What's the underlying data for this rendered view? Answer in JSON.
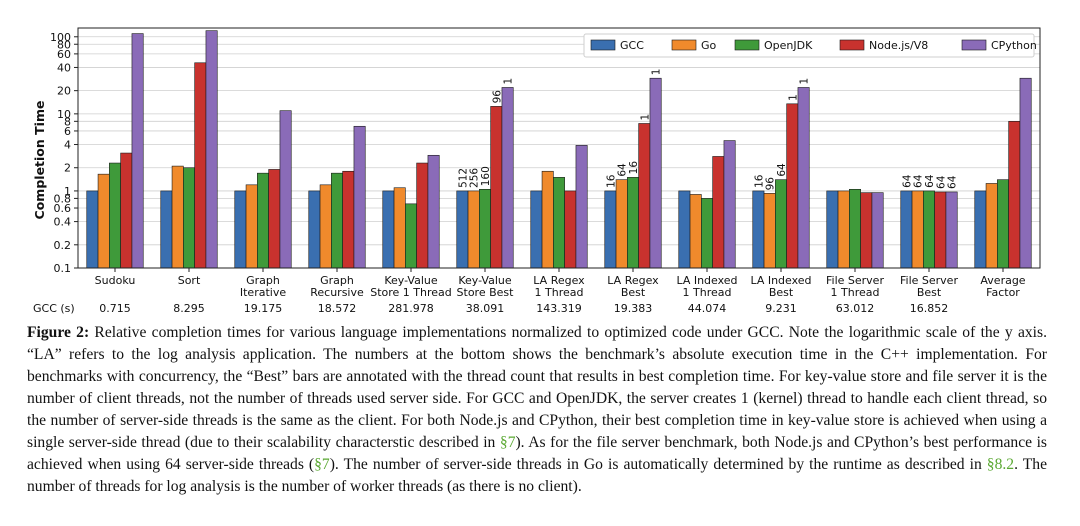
{
  "chart_data": {
    "type": "bar",
    "ylabel": "Completion Time",
    "yscale": "log",
    "ylim": [
      0.1,
      130
    ],
    "yticks": [
      0.1,
      0.2,
      0.4,
      0.6,
      0.8,
      1,
      2,
      4,
      6,
      8,
      10,
      20,
      40,
      60,
      80,
      100
    ],
    "ytick_labels": [
      "0.1",
      "0.2",
      "0.4",
      "0.6",
      "0.8",
      "1",
      "2",
      "4",
      "6",
      "8",
      "10",
      "20",
      "40",
      "60",
      "80",
      "100"
    ],
    "legend_position": "top-right",
    "categories": [
      [
        "Sudoku"
      ],
      [
        "Sort"
      ],
      [
        "Graph",
        "Iterative"
      ],
      [
        "Graph",
        "Recursive"
      ],
      [
        "Key-Value",
        "Store 1 Thread"
      ],
      [
        "Key-Value",
        "Store Best"
      ],
      [
        "LA Regex",
        "1 Thread"
      ],
      [
        "LA Regex",
        "Best"
      ],
      [
        "LA Indexed",
        "1 Thread"
      ],
      [
        "LA Indexed",
        "Best"
      ],
      [
        "File Server",
        "1 Thread"
      ],
      [
        "File Server",
        "Best"
      ],
      [
        "Average",
        "Factor"
      ]
    ],
    "gcc_row_label": "GCC (s)",
    "gcc_seconds": [
      "0.715",
      "8.295",
      "19.175",
      "18.572",
      "281.978",
      "38.091",
      "143.319",
      "19.383",
      "44.074",
      "9.231",
      "63.012",
      "16.852",
      ""
    ],
    "series": [
      {
        "name": "GCC",
        "color": "#3a6fb0",
        "values": [
          1,
          1,
          1,
          1,
          1,
          1,
          1,
          1,
          1,
          1,
          1,
          1,
          1
        ],
        "annotations": [
          "",
          "",
          "",
          "",
          "",
          "512",
          "",
          "16",
          "",
          "16",
          "",
          "64",
          ""
        ]
      },
      {
        "name": "Go",
        "color": "#f08a2c",
        "values": [
          1.65,
          2.1,
          1.2,
          1.2,
          1.1,
          1.0,
          1.8,
          1.4,
          0.9,
          0.93,
          1.0,
          1.0,
          1.25
        ],
        "annotations": [
          "",
          "",
          "",
          "",
          "",
          "256",
          "",
          "64",
          "",
          "96",
          "",
          "64",
          ""
        ]
      },
      {
        "name": "OpenJDK",
        "color": "#3f9a3a",
        "values": [
          2.3,
          2.0,
          1.7,
          1.7,
          0.68,
          1.05,
          1.5,
          1.5,
          0.8,
          1.4,
          1.05,
          1.0,
          1.4
        ],
        "annotations": [
          "",
          "",
          "",
          "",
          "",
          "160",
          "",
          "16",
          "",
          "64",
          "",
          "64",
          ""
        ]
      },
      {
        "name": "Node.js/V8",
        "color": "#c8322e",
        "values": [
          3.1,
          46,
          1.9,
          1.8,
          2.3,
          12.5,
          1.0,
          7.5,
          2.8,
          13.5,
          0.95,
          0.97,
          8
        ],
        "annotations": [
          "",
          "",
          "",
          "",
          "",
          "96",
          "",
          "1",
          "",
          "1",
          "",
          "64",
          ""
        ]
      },
      {
        "name": "CPython",
        "color": "#8a6bb8",
        "values": [
          110,
          120,
          11,
          6.9,
          2.9,
          22,
          3.9,
          29,
          4.5,
          22,
          0.95,
          0.97,
          29
        ],
        "annotations": [
          "",
          "",
          "",
          "",
          "",
          "1",
          "",
          "1",
          "",
          "1",
          "",
          "64",
          ""
        ]
      }
    ]
  },
  "caption": {
    "label": "Figure 2:",
    "t1": " Relative completion times for various language implementations normalized to optimized code under GCC. Note the logarithmic scale of the y axis. “LA” refers to the log analysis application. The numbers at the bottom shows the benchmark’s absolute execution time in the C++ implementation. For benchmarks with concurrency, the “Best” bars are annotated with the thread count that results in best completion time. For key-value store and file server it is the number of client threads, not the number of threads used server side. For GCC and OpenJDK, the server creates 1 (kernel) thread to handle each client thread, so the number of server-side threads is the same as the client. For both Node.js and CPython, their best completion time in key-value store is achieved when using a single server-side thread (due to their scalability characterstic described in ",
    "ref1": "§7",
    "t2": "). As for the file server benchmark, both Node.js and CPython’s best performance is achieved when using 64 server-side threads (",
    "ref2": "§7",
    "t3": "). The number of server-side threads in Go is automatically determined by the runtime as described in ",
    "ref3": "§8.2",
    "t4": ". The number of threads for log analysis is the number of worker threads (as there is no client)."
  }
}
